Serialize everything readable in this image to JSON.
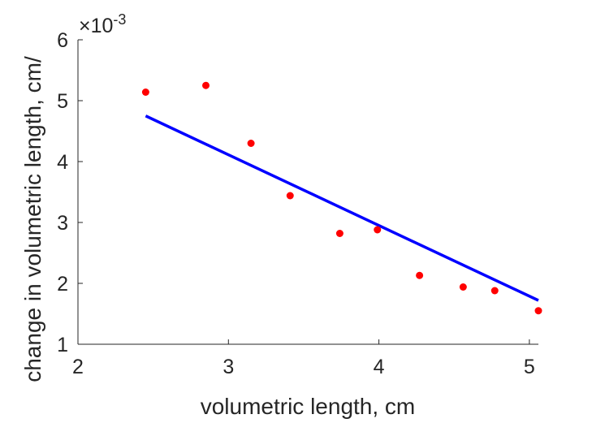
{
  "chart_data": {
    "type": "scatter",
    "title": "",
    "xlabel": "volumetric length, cm",
    "ylabel": "change in volumetric length, cm/",
    "xlim": [
      2,
      5.06
    ],
    "ylim": [
      1,
      6
    ],
    "y_exponent_label": "×10",
    "y_exponent_power": "-3",
    "x_ticks": [
      2,
      3,
      4,
      5
    ],
    "x_tick_labels": [
      "2",
      "3",
      "4",
      "5"
    ],
    "y_ticks": [
      1,
      2,
      3,
      4,
      5,
      6
    ],
    "y_tick_labels": [
      "1",
      "2",
      "3",
      "4",
      "5",
      "6"
    ],
    "grid": false,
    "series": [
      {
        "type": "scatter",
        "color": "#ff0000",
        "points": [
          [
            2.45,
            5.14
          ],
          [
            2.85,
            5.25
          ],
          [
            3.15,
            4.3
          ],
          [
            3.41,
            3.44
          ],
          [
            3.74,
            2.82
          ],
          [
            3.99,
            2.88
          ],
          [
            4.27,
            2.13
          ],
          [
            4.56,
            1.94
          ],
          [
            4.77,
            1.88
          ],
          [
            5.06,
            1.55
          ]
        ]
      },
      {
        "type": "line",
        "color": "#0000ff",
        "points": [
          [
            2.45,
            4.75
          ],
          [
            5.06,
            1.72
          ]
        ]
      }
    ]
  }
}
